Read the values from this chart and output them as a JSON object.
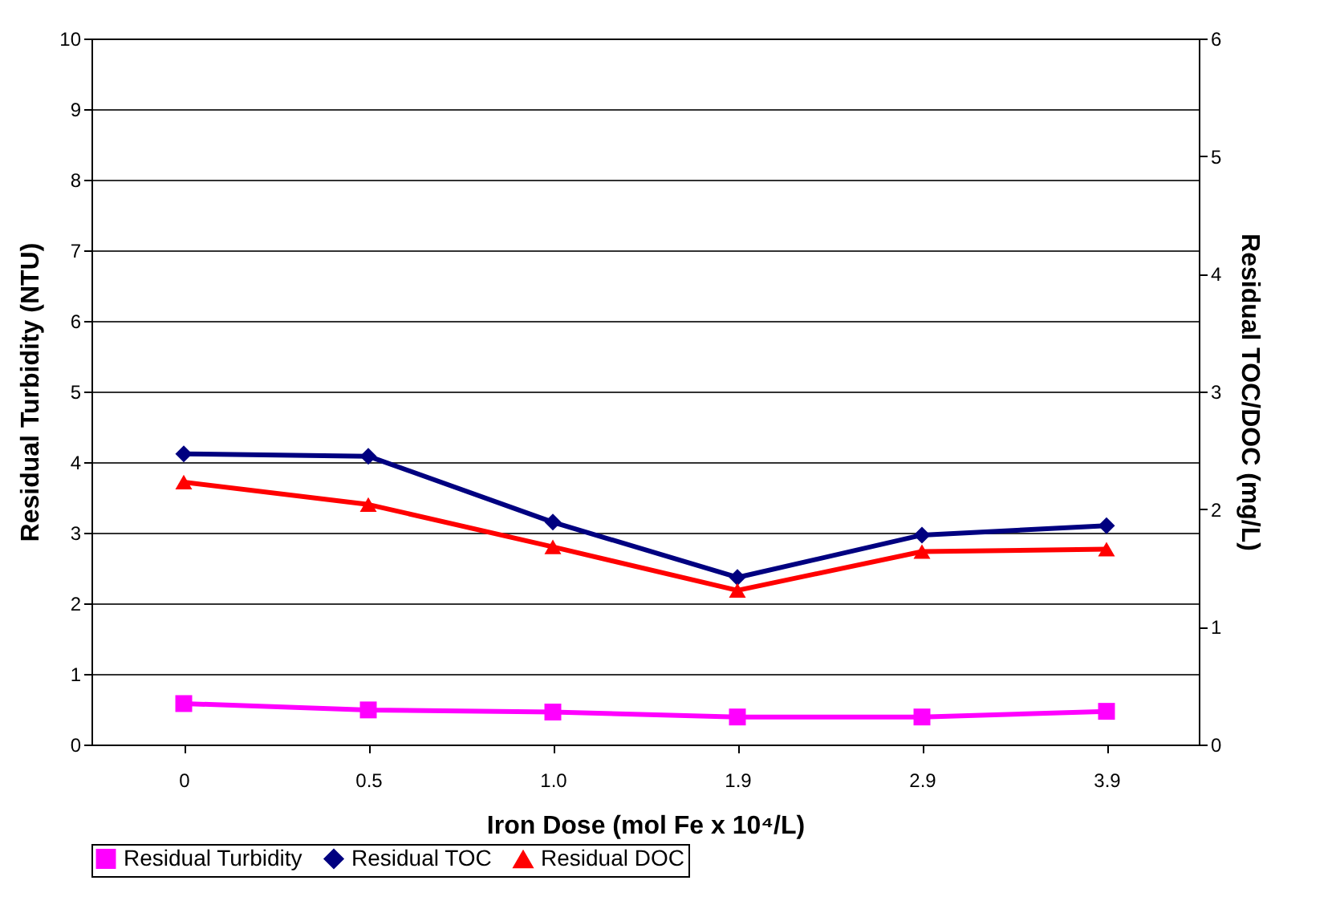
{
  "chart_data": {
    "type": "line",
    "xlabel": "Iron Dose (mol Fe x 10⁴/L)",
    "ylabel": "Residual Turbidity (NTU)",
    "y2label": "Residual TOC/DOC (mg/L)",
    "categories": [
      "0",
      "0.5",
      "1.0",
      "1.9",
      "2.9",
      "3.9"
    ],
    "series": [
      {
        "name": "Residual Turbidity",
        "color": "#ff00ff",
        "marker": "square",
        "values": [
          0.58,
          0.49,
          0.46,
          0.39,
          0.39,
          0.47
        ]
      },
      {
        "name": "Residual TOC",
        "color": "#000080",
        "marker": "diamond",
        "axis": "y2",
        "values": [
          2.47,
          2.45,
          1.89,
          1.42,
          1.78,
          1.86
        ]
      },
      {
        "name": "Residual DOC",
        "color": "#ff0000",
        "marker": "triangle",
        "axis": "y2",
        "values": [
          2.23,
          2.04,
          1.68,
          1.31,
          1.64,
          1.66
        ]
      }
    ],
    "ylim": [
      0,
      10
    ],
    "yticks": [
      0,
      1,
      2,
      3,
      4,
      5,
      6,
      7,
      8,
      9,
      10
    ],
    "y2lim": [
      0,
      6
    ],
    "y2ticks": [
      0,
      1,
      2,
      3,
      4,
      5,
      6
    ],
    "grid": "y",
    "legend": "bottom",
    "line_style": "solid"
  }
}
